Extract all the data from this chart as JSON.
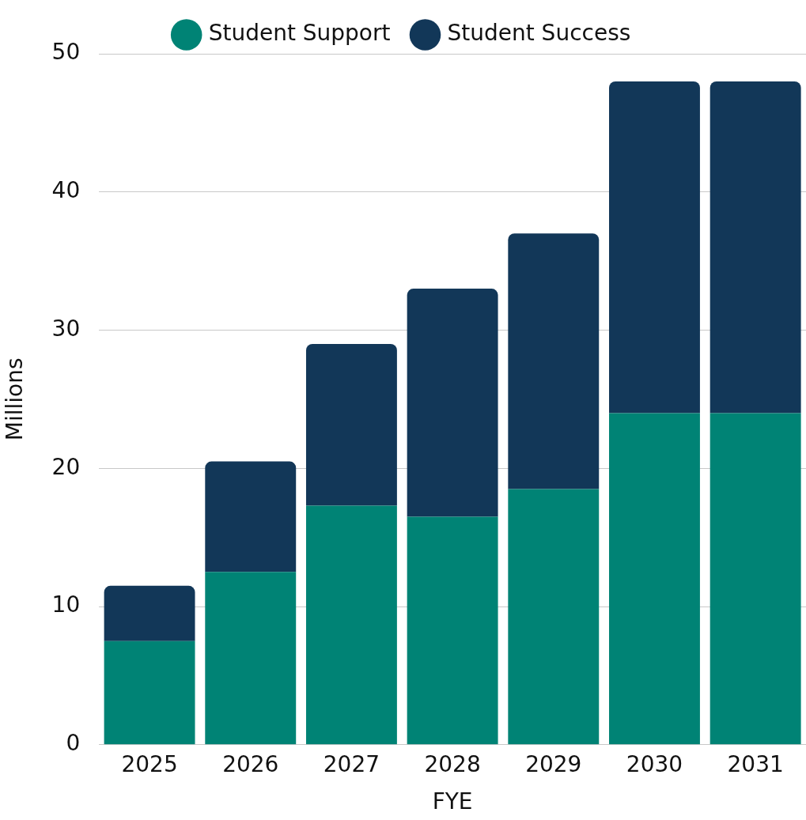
{
  "chart_data": {
    "type": "bar",
    "xlabel": "FYE",
    "ylabel": "Millions",
    "categories": [
      "2025",
      "2026",
      "2027",
      "2028",
      "2029",
      "2030",
      "2031"
    ],
    "stacked": true,
    "series": [
      {
        "name": "Student Support",
        "color": "#008375",
        "values": [
          7.5,
          12.5,
          17.3,
          16.5,
          18.5,
          24,
          24
        ]
      },
      {
        "name": "Student Success",
        "color": "#123758",
        "values": [
          4,
          8,
          11.7,
          16.5,
          18.5,
          24,
          24
        ]
      }
    ],
    "ylim": [
      0,
      50
    ],
    "yticks": [
      0,
      10,
      20,
      30,
      40,
      50
    ],
    "grid": "y",
    "legend": "top"
  }
}
